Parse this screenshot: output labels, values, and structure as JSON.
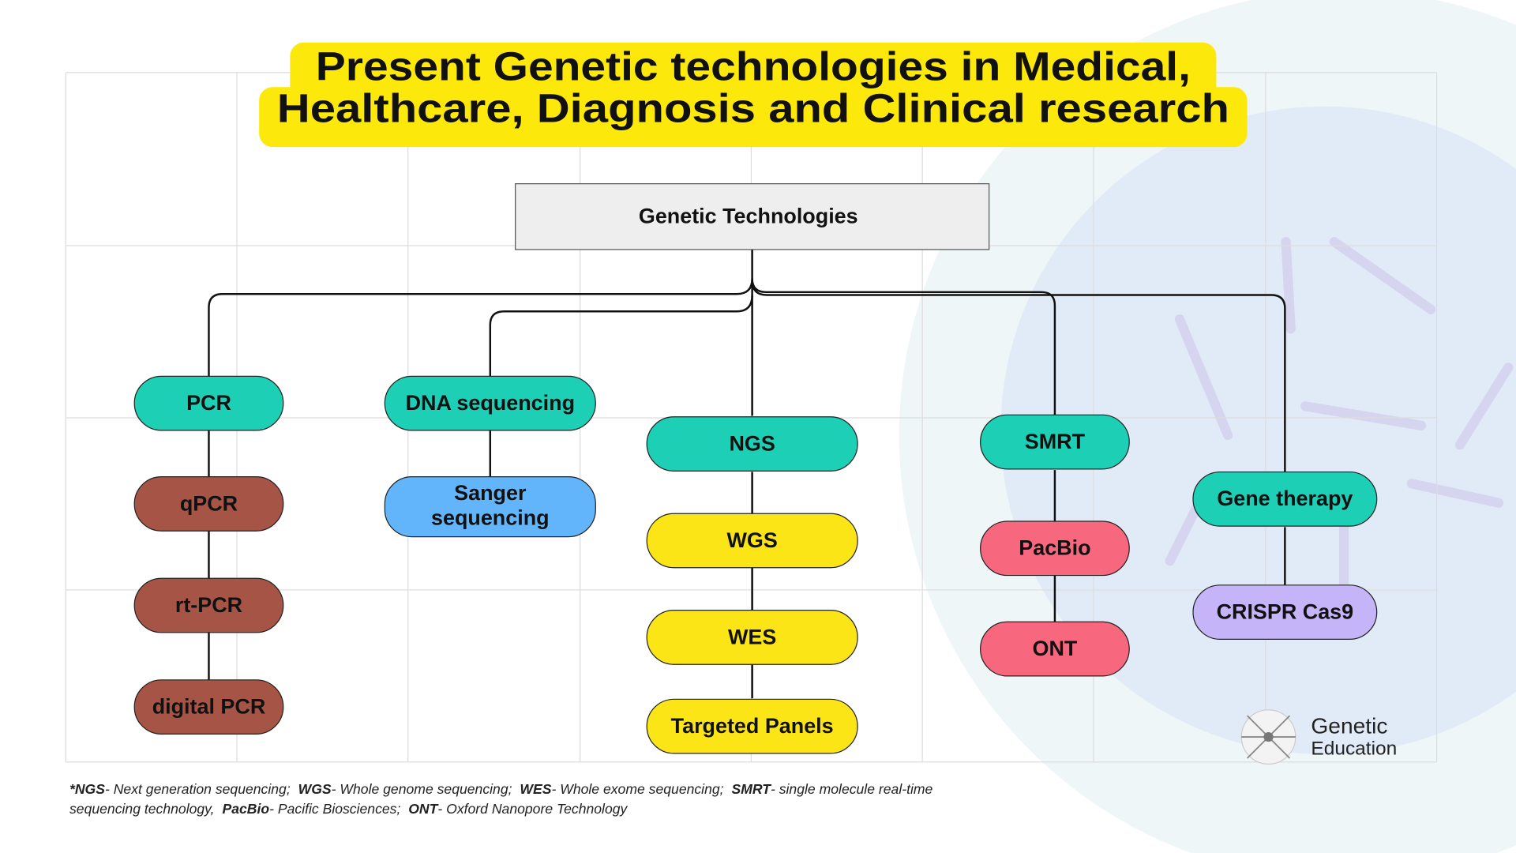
{
  "header": {
    "title": {
      "line1": "Present Genetic technologies in Medical,",
      "line2": "Healthcare, Diagnosis and Clinical research"
    }
  },
  "root": {
    "label": "Genetic Technologies"
  },
  "nodes": [
    {
      "label": "PCR",
      "color": "#1ccfb5"
    },
    {
      "label": "qPCR",
      "color": "#a65445"
    },
    {
      "label": "rt-PCR",
      "color": "#a65445"
    },
    {
      "label": "digital PCR",
      "color": "#a65445"
    },
    {
      "label": "DNA sequencing",
      "color": "#1ccfb5"
    },
    {
      "label": [
        "Sanger",
        "sequencing"
      ],
      "color": "#62b5fb"
    },
    {
      "label": "NGS",
      "color": "#1ccfb5"
    },
    {
      "label": "WGS",
      "color": "#fbe516"
    },
    {
      "label": "WES",
      "color": "#fbe516"
    },
    {
      "label": "Targeted Panels",
      "color": "#fbe516"
    },
    {
      "label": "SMRT",
      "color": "#1ccfb5"
    },
    {
      "label": "PacBio",
      "color": "#f7687f"
    },
    {
      "label": "ONT",
      "color": "#f7687f"
    },
    {
      "label": "Gene therapy",
      "color": "#1ccfb5"
    },
    {
      "label": "CRISPR Cas9",
      "color": "#c5b5f8"
    }
  ],
  "footnote": [
    {
      "abbr": "*NGS",
      "def": "- Next generation sequencing;"
    },
    {
      "abbr": "WGS",
      "def": "- Whole genome sequencing;"
    },
    {
      "abbr": "WES",
      "def": "- Whole exome sequencing;"
    },
    {
      "abbr": "SMRT",
      "def": "- single molecule real-time sequencing technology,"
    },
    {
      "abbr": "PacBio",
      "def": "- Pacific Biosciences;"
    },
    {
      "abbr": "ONT",
      "def": "- Oxford Nanopore Technology"
    }
  ],
  "logo": {
    "line1": "Genetic",
    "line2": "Education"
  }
}
